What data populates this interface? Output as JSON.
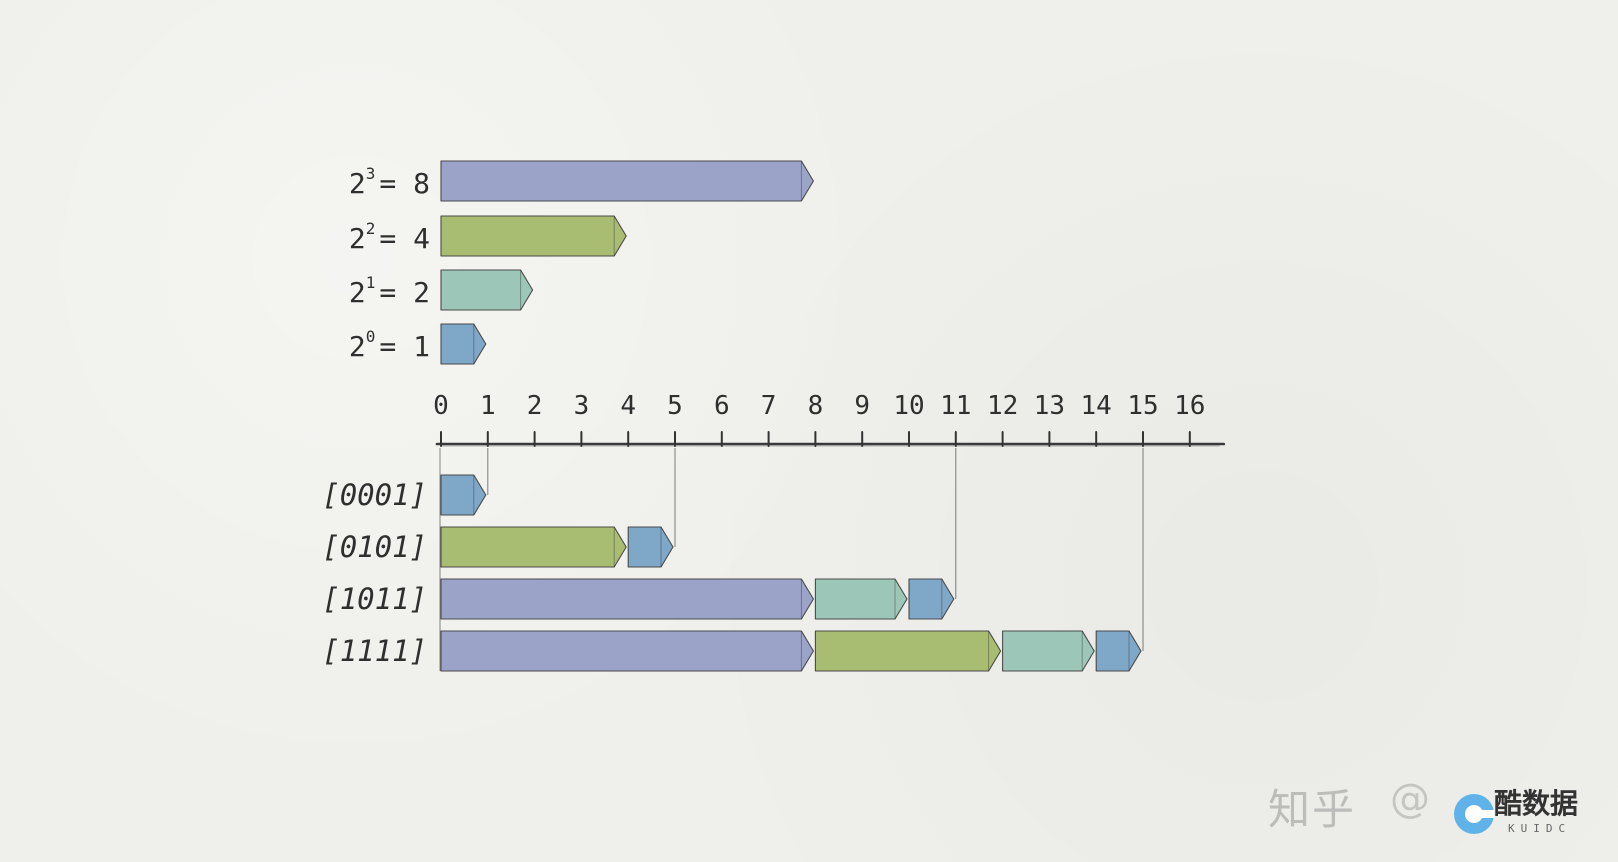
{
  "powers": [
    {
      "base": "2",
      "exponent": "3",
      "suffix": "= 8",
      "length": 8,
      "color": "purple"
    },
    {
      "base": "2",
      "exponent": "2",
      "suffix": "= 4",
      "length": 4,
      "color": "green"
    },
    {
      "base": "2",
      "exponent": "1",
      "suffix": "= 2",
      "length": 2,
      "color": "teal"
    },
    {
      "base": "2",
      "exponent": "0",
      "suffix": "= 1",
      "length": 1,
      "color": "blue"
    }
  ],
  "axis": {
    "ticks": [
      "0",
      "1",
      "2",
      "3",
      "4",
      "5",
      "6",
      "7",
      "8",
      "9",
      "10",
      "11",
      "12",
      "13",
      "14",
      "15",
      "16"
    ]
  },
  "binary_rows": [
    {
      "label": "[0001]",
      "segments": [
        {
          "start": 0,
          "length": 1,
          "color": "blue"
        }
      ],
      "end_value": 1
    },
    {
      "label": "[0101]",
      "segments": [
        {
          "start": 0,
          "length": 4,
          "color": "green"
        },
        {
          "start": 4,
          "length": 1,
          "color": "blue"
        }
      ],
      "end_value": 5
    },
    {
      "label": "[1011]",
      "segments": [
        {
          "start": 0,
          "length": 8,
          "color": "purple"
        },
        {
          "start": 8,
          "length": 2,
          "color": "teal"
        },
        {
          "start": 10,
          "length": 1,
          "color": "blue"
        }
      ],
      "end_value": 11
    },
    {
      "label": "[1111]",
      "segments": [
        {
          "start": 0,
          "length": 8,
          "color": "purple"
        },
        {
          "start": 8,
          "length": 4,
          "color": "green"
        },
        {
          "start": 12,
          "length": 2,
          "color": "teal"
        },
        {
          "start": 14,
          "length": 1,
          "color": "blue"
        }
      ],
      "end_value": 15
    }
  ],
  "colors": {
    "purple": "#9ba3c9",
    "green": "#a8bd72",
    "teal": "#9cc6b8",
    "blue": "#7fa7c8",
    "ink": "#333333"
  },
  "watermark": {
    "site": "知乎",
    "handle": "@",
    "logo_text": "酷数据",
    "logo_sub": "KUIDC"
  }
}
